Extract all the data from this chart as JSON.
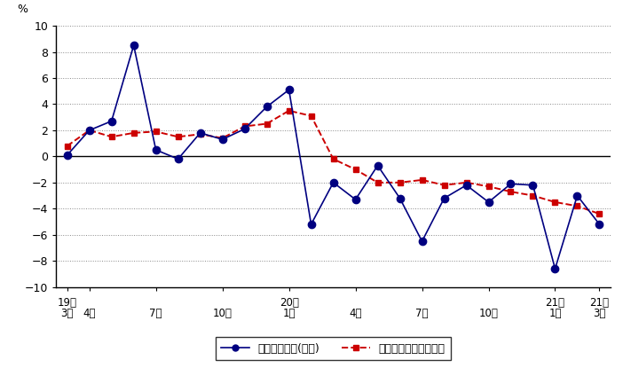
{
  "ylim": [
    -10,
    10
  ],
  "yticks": [
    -10,
    -8,
    -6,
    -4,
    -2,
    0,
    2,
    4,
    6,
    8,
    10
  ],
  "blue_values": [
    0.1,
    2.0,
    2.7,
    8.5,
    0.5,
    -0.2,
    1.8,
    1.3,
    2.1,
    3.8,
    5.1,
    -5.2,
    -2.0,
    -3.3,
    -0.7,
    -3.2,
    -6.5,
    -3.2,
    -2.2,
    -3.5,
    -2.1,
    -2.2,
    -8.6,
    -3.0,
    -5.2
  ],
  "red_values": [
    0.8,
    2.0,
    1.5,
    1.8,
    1.9,
    1.5,
    1.7,
    1.4,
    2.3,
    2.5,
    3.5,
    3.1,
    -0.2,
    -1.0,
    -2.0,
    -2.0,
    -1.8,
    -2.2,
    -2.0,
    -2.3,
    -2.7,
    -3.0,
    -3.5,
    -3.8,
    -4.4
  ],
  "n_points": 25,
  "blue_color": "#000080",
  "red_color": "#CC0000",
  "legend_blue": "現金給与総額(名目)",
  "legend_red": "きまって支給する給与",
  "ylabel": "%",
  "tick_positions": [
    0,
    1,
    4,
    7,
    10,
    13,
    16,
    19,
    22,
    24
  ],
  "tick_labels_year": [
    "19年",
    "",
    "",
    "",
    "20年",
    "",
    "",
    "",
    "21年",
    "21年"
  ],
  "tick_labels_month": [
    "3月",
    "4月",
    "7月",
    "10月",
    "1月",
    "4月",
    "7月",
    "10月",
    "1月",
    "3月"
  ]
}
